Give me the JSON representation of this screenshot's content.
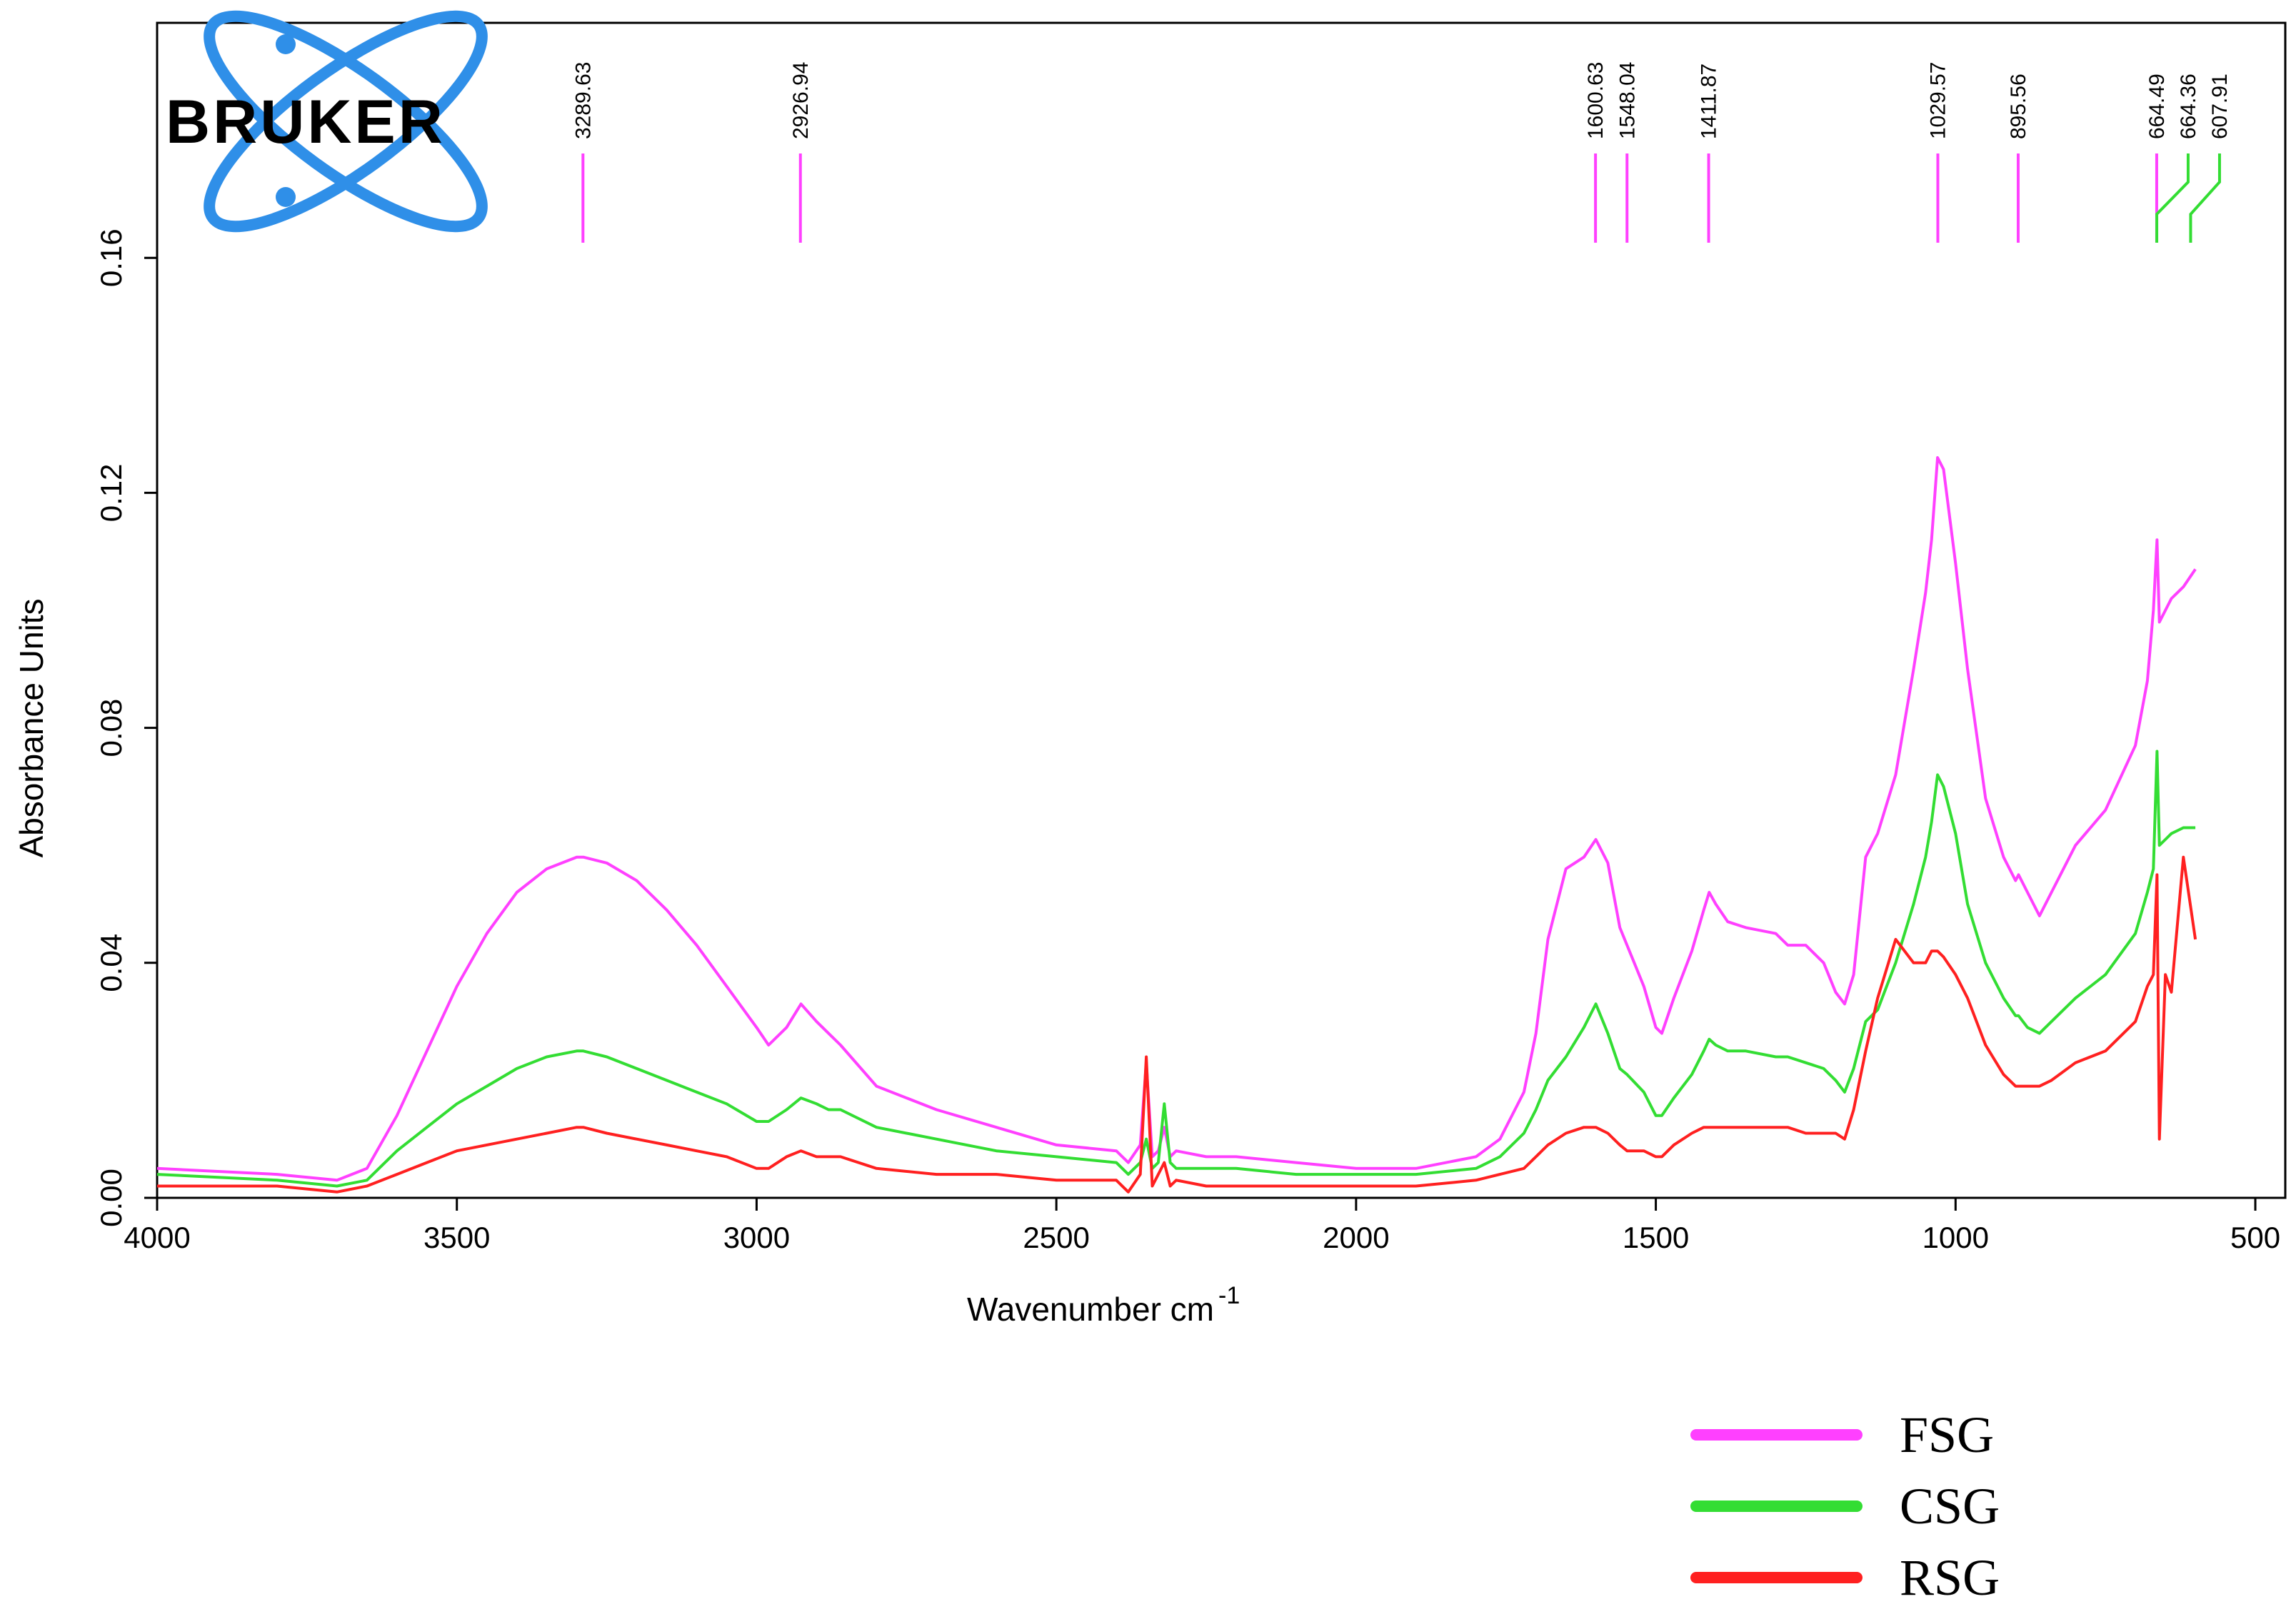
{
  "brand": {
    "name": "BRUKER",
    "ring_color": "#2f8fe8"
  },
  "chart_data": {
    "type": "line",
    "xlabel": "Wavenumber cm",
    "xlabel_sup": "-1",
    "ylabel": "Absorbance Units",
    "xlim": [
      4000,
      450
    ],
    "ylim": [
      0,
      0.2
    ],
    "x_reversed": true,
    "x_ticks": [
      4000,
      3500,
      3000,
      2500,
      2000,
      1500,
      1000,
      500
    ],
    "x_tick_labels": [
      "4000",
      "3500",
      "3000",
      "2500",
      "2000",
      "1500",
      "1000",
      "500"
    ],
    "y_ticks": [
      0,
      0.04,
      0.08,
      0.12,
      0.16
    ],
    "y_tick_labels": [
      "0.00",
      "0.04",
      "0.08",
      "0.12",
      "0.16"
    ],
    "grid": false,
    "legend_position": "bottom-right, below plot",
    "peak_markers": [
      {
        "label": "3289.63",
        "x": 3289.63,
        "color": "#ff40ff"
      },
      {
        "label": "2926.94",
        "x": 2926.94,
        "color": "#ff40ff"
      },
      {
        "label": "1600.63",
        "x": 1600.63,
        "color": "#ff40ff"
      },
      {
        "label": "1548.04",
        "x": 1548.04,
        "color": "#ff40ff"
      },
      {
        "label": "1411.87",
        "x": 1411.87,
        "color": "#ff40ff"
      },
      {
        "label": "1029.57",
        "x": 1029.57,
        "color": "#ff40ff"
      },
      {
        "label": "895.56",
        "x": 895.56,
        "color": "#ff40ff"
      },
      {
        "label": "664.49",
        "x": 664.49,
        "color": "#ff40ff"
      },
      {
        "label": "664.36",
        "x": 664.36,
        "color": "#33dd33"
      },
      {
        "label": "607.91",
        "x": 607.91,
        "color": "#33dd33"
      }
    ],
    "series": [
      {
        "name": "FSG",
        "color": "#ff40ff",
        "x": [
          4000,
          3800,
          3700,
          3650,
          3600,
          3550,
          3500,
          3450,
          3400,
          3350,
          3300,
          3289,
          3250,
          3200,
          3150,
          3100,
          3050,
          3000,
          2980,
          2950,
          2926,
          2900,
          2880,
          2860,
          2800,
          2700,
          2600,
          2500,
          2400,
          2380,
          2360,
          2350,
          2340,
          2330,
          2320,
          2310,
          2300,
          2250,
          2200,
          2100,
          2000,
          1900,
          1800,
          1760,
          1720,
          1700,
          1680,
          1650,
          1620,
          1600,
          1580,
          1560,
          1548,
          1520,
          1500,
          1490,
          1470,
          1440,
          1420,
          1411,
          1400,
          1380,
          1350,
          1300,
          1280,
          1250,
          1220,
          1200,
          1185,
          1170,
          1150,
          1130,
          1100,
          1070,
          1050,
          1040,
          1030,
          1020,
          1000,
          980,
          950,
          920,
          900,
          895,
          880,
          860,
          840,
          800,
          750,
          700,
          680,
          670,
          664,
          660,
          650,
          640,
          620,
          600
        ],
        "values": [
          0.005,
          0.004,
          0.003,
          0.005,
          0.014,
          0.025,
          0.036,
          0.045,
          0.052,
          0.056,
          0.058,
          0.058,
          0.057,
          0.054,
          0.049,
          0.043,
          0.036,
          0.029,
          0.026,
          0.029,
          0.033,
          0.03,
          0.028,
          0.026,
          0.019,
          0.015,
          0.012,
          0.009,
          0.008,
          0.006,
          0.009,
          0.023,
          0.007,
          0.008,
          0.012,
          0.007,
          0.008,
          0.007,
          0.007,
          0.006,
          0.005,
          0.005,
          0.007,
          0.01,
          0.018,
          0.028,
          0.044,
          0.056,
          0.058,
          0.061,
          0.057,
          0.046,
          0.043,
          0.036,
          0.029,
          0.028,
          0.034,
          0.042,
          0.049,
          0.052,
          0.05,
          0.047,
          0.046,
          0.045,
          0.043,
          0.043,
          0.04,
          0.035,
          0.033,
          0.038,
          0.058,
          0.062,
          0.072,
          0.09,
          0.103,
          0.112,
          0.126,
          0.124,
          0.108,
          0.09,
          0.068,
          0.058,
          0.054,
          0.055,
          0.052,
          0.048,
          0.052,
          0.06,
          0.066,
          0.077,
          0.088,
          0.1,
          0.112,
          0.098,
          0.1,
          0.102,
          0.104,
          0.107
        ]
      },
      {
        "name": "CSG",
        "color": "#33dd33",
        "x": [
          4000,
          3800,
          3700,
          3650,
          3600,
          3550,
          3500,
          3450,
          3400,
          3350,
          3300,
          3289,
          3250,
          3200,
          3150,
          3100,
          3050,
          3000,
          2980,
          2950,
          2926,
          2900,
          2880,
          2860,
          2800,
          2700,
          2600,
          2500,
          2400,
          2380,
          2360,
          2350,
          2340,
          2330,
          2320,
          2310,
          2300,
          2250,
          2200,
          2100,
          2000,
          1900,
          1800,
          1760,
          1720,
          1700,
          1680,
          1650,
          1620,
          1600,
          1580,
          1560,
          1548,
          1520,
          1500,
          1490,
          1470,
          1440,
          1420,
          1411,
          1400,
          1380,
          1350,
          1300,
          1280,
          1250,
          1220,
          1200,
          1185,
          1170,
          1150,
          1130,
          1100,
          1070,
          1050,
          1040,
          1030,
          1020,
          1000,
          980,
          950,
          920,
          900,
          895,
          880,
          860,
          840,
          800,
          750,
          700,
          680,
          670,
          664,
          660,
          650,
          640,
          620,
          600
        ],
        "values": [
          0.004,
          0.003,
          0.002,
          0.003,
          0.008,
          0.012,
          0.016,
          0.019,
          0.022,
          0.024,
          0.025,
          0.025,
          0.024,
          0.022,
          0.02,
          0.018,
          0.016,
          0.013,
          0.013,
          0.015,
          0.017,
          0.016,
          0.015,
          0.015,
          0.012,
          0.01,
          0.008,
          0.007,
          0.006,
          0.004,
          0.006,
          0.01,
          0.005,
          0.006,
          0.016,
          0.006,
          0.005,
          0.005,
          0.005,
          0.004,
          0.004,
          0.004,
          0.005,
          0.007,
          0.011,
          0.015,
          0.02,
          0.024,
          0.029,
          0.033,
          0.028,
          0.022,
          0.021,
          0.018,
          0.014,
          0.014,
          0.017,
          0.021,
          0.025,
          0.027,
          0.026,
          0.025,
          0.025,
          0.024,
          0.024,
          0.023,
          0.022,
          0.02,
          0.018,
          0.022,
          0.03,
          0.032,
          0.04,
          0.05,
          0.058,
          0.064,
          0.072,
          0.07,
          0.062,
          0.05,
          0.04,
          0.034,
          0.031,
          0.031,
          0.029,
          0.028,
          0.03,
          0.034,
          0.038,
          0.045,
          0.052,
          0.056,
          0.076,
          0.06,
          0.061,
          0.062,
          0.063,
          0.063
        ]
      },
      {
        "name": "RSG",
        "color": "#ff2020",
        "x": [
          4000,
          3800,
          3700,
          3650,
          3600,
          3550,
          3500,
          3450,
          3400,
          3350,
          3300,
          3289,
          3250,
          3200,
          3150,
          3100,
          3050,
          3000,
          2980,
          2950,
          2926,
          2900,
          2880,
          2860,
          2800,
          2700,
          2600,
          2500,
          2400,
          2380,
          2360,
          2350,
          2340,
          2330,
          2320,
          2310,
          2300,
          2250,
          2200,
          2100,
          2000,
          1900,
          1800,
          1760,
          1720,
          1700,
          1680,
          1650,
          1620,
          1600,
          1580,
          1560,
          1548,
          1520,
          1500,
          1490,
          1470,
          1440,
          1420,
          1411,
          1400,
          1380,
          1350,
          1300,
          1280,
          1250,
          1220,
          1200,
          1185,
          1170,
          1150,
          1130,
          1100,
          1070,
          1050,
          1040,
          1030,
          1020,
          1000,
          980,
          950,
          920,
          900,
          895,
          880,
          860,
          840,
          800,
          750,
          700,
          680,
          670,
          664,
          660,
          650,
          640,
          620,
          600
        ],
        "values": [
          0.002,
          0.002,
          0.001,
          0.002,
          0.004,
          0.006,
          0.008,
          0.009,
          0.01,
          0.011,
          0.012,
          0.012,
          0.011,
          0.01,
          0.009,
          0.008,
          0.007,
          0.005,
          0.005,
          0.007,
          0.008,
          0.007,
          0.007,
          0.007,
          0.005,
          0.004,
          0.004,
          0.003,
          0.003,
          0.001,
          0.004,
          0.024,
          0.002,
          0.004,
          0.006,
          0.002,
          0.003,
          0.002,
          0.002,
          0.002,
          0.002,
          0.002,
          0.003,
          0.004,
          0.005,
          0.007,
          0.009,
          0.011,
          0.012,
          0.012,
          0.011,
          0.009,
          0.008,
          0.008,
          0.007,
          0.007,
          0.009,
          0.011,
          0.012,
          0.012,
          0.012,
          0.012,
          0.012,
          0.012,
          0.012,
          0.011,
          0.011,
          0.011,
          0.01,
          0.015,
          0.025,
          0.034,
          0.044,
          0.04,
          0.04,
          0.042,
          0.042,
          0.041,
          0.038,
          0.034,
          0.026,
          0.021,
          0.019,
          0.019,
          0.019,
          0.019,
          0.02,
          0.023,
          0.025,
          0.03,
          0.036,
          0.038,
          0.055,
          0.01,
          0.038,
          0.035,
          0.058,
          0.044
        ]
      }
    ]
  }
}
